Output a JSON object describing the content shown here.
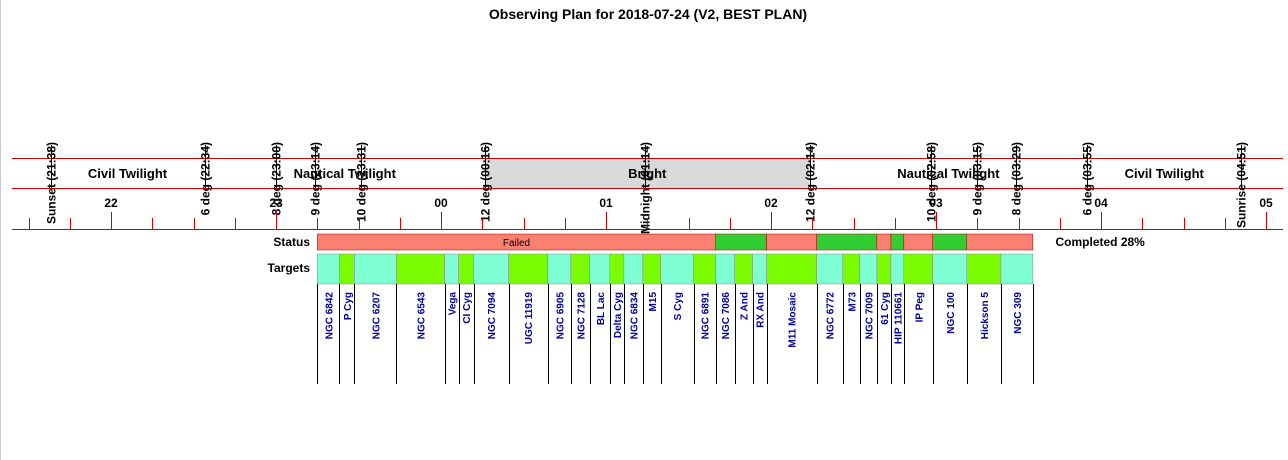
{
  "title": "Observing Plan for 2018-07-24 (V2, BEST PLAN)",
  "events": [
    "Sunset (21:38)",
    "6 deg (22:34)",
    "8 deg (23:00)",
    "9 deg (23:14)",
    "10 deg (23:31)",
    "12 deg (00:16)",
    "Midnight (01:14)",
    "12 deg (02:14)",
    "10 deg (02:58)",
    "9 deg (03:15)",
    "8 deg (03:29)",
    "6 deg (03:55)",
    "Sunrise (04:51)"
  ],
  "periods": [
    "Civil Twilight",
    "Nautical Twilight",
    "Bright",
    "Nautical Twilight",
    "Civil Twilight"
  ],
  "hours": [
    "22",
    "23",
    "00",
    "01",
    "02",
    "03",
    "04",
    "05"
  ],
  "status_title": "Status",
  "status_label": "Failed",
  "completed_label": "Completed 28%",
  "targets_title": "Targets",
  "start": "23:15",
  "target_colors": [
    "#7fffd4",
    "#7cfc00"
  ],
  "status_colors": {
    "failed": "#fa8072",
    "completed": "#32cd32"
  },
  "targets": [
    {
      "name": "NGC 6842",
      "minutes": 8,
      "completed": false
    },
    {
      "name": "P Cyg",
      "minutes": 5.5,
      "completed": false
    },
    {
      "name": "NGC 6207",
      "minutes": 15.3,
      "completed": false
    },
    {
      "name": "NGC 6543",
      "minutes": 17.5,
      "completed": false
    },
    {
      "name": "Vega",
      "minutes": 5.1,
      "completed": false
    },
    {
      "name": "CI Cyg",
      "minutes": 5.5,
      "completed": false
    },
    {
      "name": "NGC 7094",
      "minutes": 12.7,
      "completed": false
    },
    {
      "name": "UGC 11919",
      "minutes": 14.2,
      "completed": false
    },
    {
      "name": "NGC 6905",
      "minutes": 8.4,
      "completed": false
    },
    {
      "name": "NGC 7128",
      "minutes": 6.9,
      "completed": false
    },
    {
      "name": "BL Lac",
      "minutes": 7.3,
      "completed": false
    },
    {
      "name": "Delta Cyg",
      "minutes": 5.1,
      "completed": false
    },
    {
      "name": "NGC 6834",
      "minutes": 6.9,
      "completed": false
    },
    {
      "name": "M15",
      "minutes": 6.5,
      "completed": false
    },
    {
      "name": "S Cyg",
      "minutes": 12,
      "completed": false
    },
    {
      "name": "NGC 6891",
      "minutes": 8,
      "completed": false
    },
    {
      "name": "NGC 7086",
      "minutes": 6.9,
      "completed": true
    },
    {
      "name": "Z And",
      "minutes": 6.5,
      "completed": true
    },
    {
      "name": "RX And",
      "minutes": 5.1,
      "completed": true
    },
    {
      "name": "M11 Mosaic",
      "minutes": 18.2,
      "completed": false
    },
    {
      "name": "NGC 6772",
      "minutes": 9.5,
      "completed": true
    },
    {
      "name": "M73",
      "minutes": 6.2,
      "completed": true
    },
    {
      "name": "NGC 7009",
      "minutes": 6.2,
      "completed": true
    },
    {
      "name": "61 Cyg",
      "minutes": 5.1,
      "completed": false
    },
    {
      "name": "HIP 110661",
      "minutes": 4.7,
      "completed": true
    },
    {
      "name": "IP Peg",
      "minutes": 10.5,
      "completed": false
    },
    {
      "name": "NGC 100",
      "minutes": 12.4,
      "completed": true
    },
    {
      "name": "Hickson 5",
      "minutes": 12.4,
      "completed": false
    },
    {
      "name": "NGC 309",
      "minutes": 11.6,
      "completed": false
    }
  ]
}
